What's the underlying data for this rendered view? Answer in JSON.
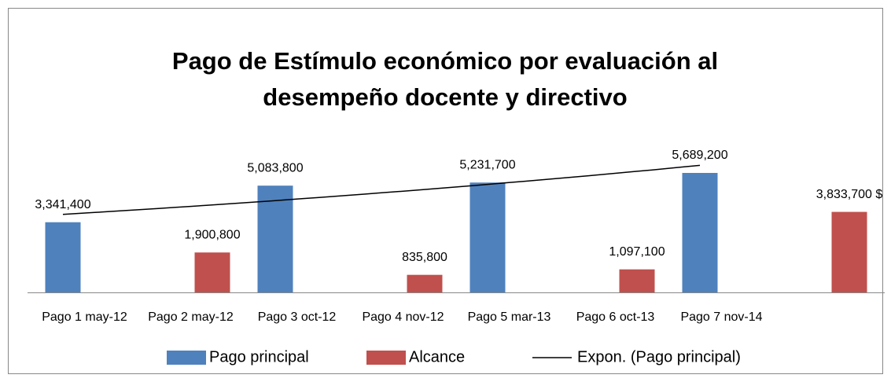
{
  "chart_data": {
    "type": "bar",
    "title": [
      "Pago de Estímulo económico por evaluación al",
      "desempeño docente y directivo"
    ],
    "categories": [
      "Pago 1 may-12",
      "Pago 2 may-12",
      "Pago 3 oct-12",
      "Pago 4 nov-12",
      "Pago 5 mar-13",
      "Pago 6 oct-13",
      "Pago 7 nov-14",
      null
    ],
    "series": [
      {
        "name": "Pago principal",
        "color": "#4f81bd",
        "values": [
          3341400,
          null,
          5083800,
          null,
          5231700,
          null,
          5689200,
          null
        ],
        "value_labels": [
          "3,341,400",
          null,
          "5,083,800",
          null,
          "5,231,700",
          null,
          "5,689,200",
          null
        ]
      },
      {
        "name": "Alcance",
        "color": "#c0504d",
        "values": [
          null,
          1900800,
          null,
          835800,
          null,
          1097100,
          null,
          3833700
        ],
        "value_labels": [
          null,
          "1,900,800",
          null,
          "835,800",
          null,
          "1,097,100",
          null,
          "3,833,700 $"
        ]
      }
    ],
    "trendline": {
      "name": "Expon. (Pago principal)",
      "color": "#000000",
      "kind": "exponential",
      "series": 0
    },
    "ylim": [
      0,
      7000000
    ],
    "legend": "bottom"
  }
}
